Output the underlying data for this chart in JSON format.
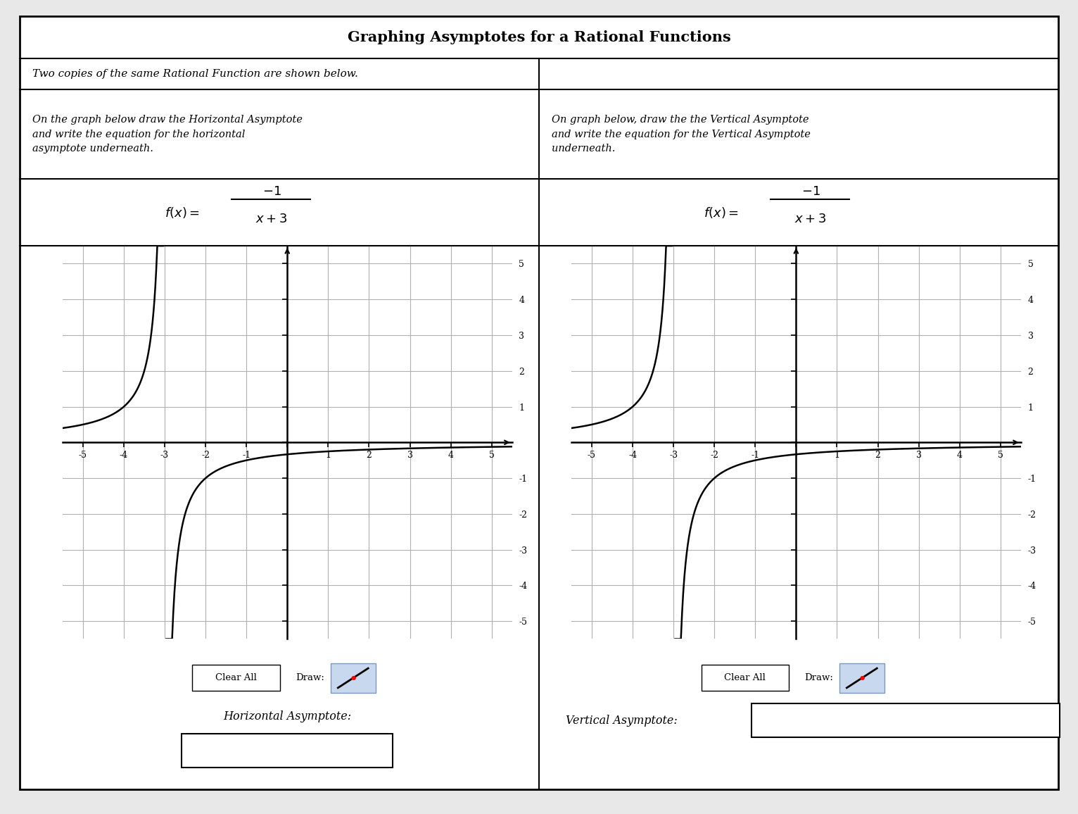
{
  "title": "Graphing Asymptotes for a Rational Functions",
  "subtitle": "Two copies of the same Rational Function are shown below.",
  "left_instruction": "On the graph below draw the Horizontal Asymptote\nand write the equation for the horizontal\nasymptote underneath.",
  "right_instruction": "On graph below, draw the the Vertical Asymptote\nand write the equation for the Vertical Asymptote\nunderneath.",
  "bottom_label_left": "Horizontal Asymptote:",
  "bottom_label_right": "Vertical Asymptote:",
  "bg_color": "#ffffff",
  "outer_bg": "#e8e8e8",
  "grid_color": "#b0b0b0",
  "curve_color": "#000000",
  "border_color": "#000000",
  "draw_button_color": "#c8d8ee",
  "fig_width": 15.32,
  "fig_height": 11.56
}
